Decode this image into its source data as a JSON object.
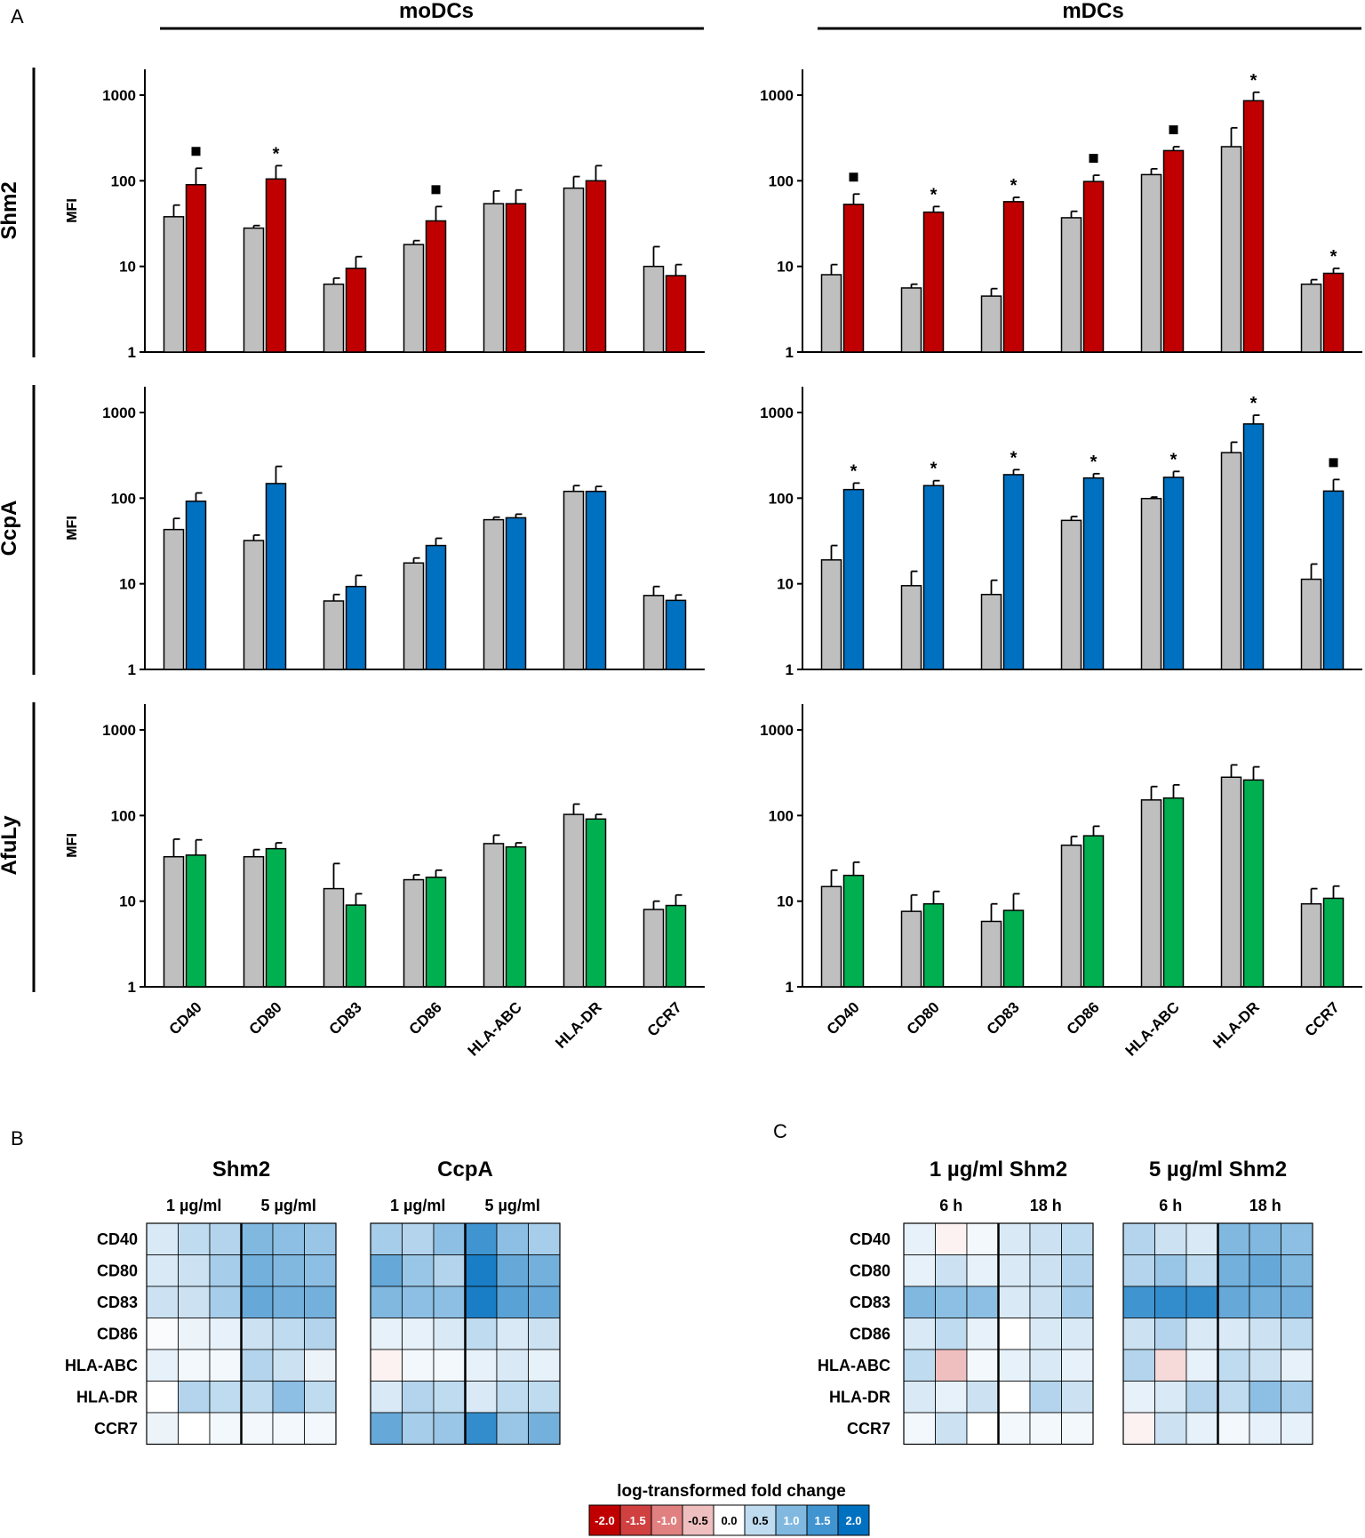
{
  "panel_letters": {
    "a": "A",
    "b": "B",
    "c": "C"
  },
  "column_titles": [
    "moDCs",
    "mDCs"
  ],
  "row_labels": [
    "Shm2",
    "CcpA",
    "AfuLy"
  ],
  "colors": {
    "control": "#bfbfbf",
    "Shm2": "#c00000",
    "CcpA": "#0070c0",
    "AfuLy": "#00b050",
    "heat_neg": "#c00000",
    "heat_pos": "#0070c0"
  },
  "chart_data": [
    {
      "type": "bar",
      "scale": "log",
      "ylabel": "MFI",
      "ylim": [
        1,
        2000
      ],
      "yticks": [
        "1",
        "10",
        "100",
        "1000"
      ],
      "categories": [
        "CD40",
        "CD80",
        "CD83",
        "CD86",
        "HLA-ABC",
        "HLA-DR",
        "CCR7"
      ],
      "panels": [
        {
          "row": "Shm2",
          "column": "moDCs",
          "series": [
            {
              "name": "control",
              "values": [
                38,
                28,
                6.2,
                18,
                54,
                82,
                10
              ],
              "err": [
                52,
                30,
                7.3,
                20,
                76,
                112,
                17
              ]
            },
            {
              "name": "Shm2",
              "values": [
                90,
                105,
                9.5,
                34,
                54,
                100,
                7.8
              ],
              "err": [
                140,
                150,
                13,
                50,
                78,
                150,
                10.5
              ]
            }
          ],
          "annotations": [
            "■",
            "*",
            "",
            "■",
            "",
            "",
            ""
          ]
        },
        {
          "row": "Shm2",
          "column": "mDCs",
          "series": [
            {
              "name": "control",
              "values": [
                8,
                5.6,
                4.5,
                37,
                118,
                250,
                6.2
              ],
              "err": [
                10.5,
                6.2,
                5.5,
                44,
                138,
                415,
                7
              ]
            },
            {
              "name": "Shm2",
              "values": [
                53,
                43,
                57,
                98,
                225,
                860,
                8.3
              ],
              "err": [
                70,
                50,
                64,
                116,
                250,
                1080,
                9.5
              ]
            }
          ],
          "annotations": [
            "■",
            "*",
            "*",
            "■",
            "■",
            "*",
            "*"
          ]
        },
        {
          "row": "CcpA",
          "column": "moDCs",
          "series": [
            {
              "name": "control",
              "values": [
                43,
                32,
                6.3,
                17.5,
                56,
                120,
                7.3
              ],
              "err": [
                58,
                37,
                7.5,
                20,
                60,
                140,
                9.3
              ]
            },
            {
              "name": "CcpA",
              "values": [
                92,
                148,
                9.3,
                28,
                59,
                120,
                6.4
              ],
              "err": [
                115,
                235,
                12.5,
                34,
                65,
                137,
                7.4
              ]
            }
          ],
          "annotations": [
            "",
            "",
            "",
            "",
            "",
            "",
            ""
          ]
        },
        {
          "row": "CcpA",
          "column": "mDCs",
          "series": [
            {
              "name": "control",
              "values": [
                19,
                9.5,
                7.5,
                55,
                99,
                340,
                11.3
              ],
              "err": [
                28,
                14,
                11,
                61,
                103,
                450,
                17
              ]
            },
            {
              "name": "CcpA",
              "values": [
                126,
                140,
                188,
                172,
                175,
                735,
                121
              ],
              "err": [
                150,
                160,
                215,
                193,
                205,
                930,
                165
              ]
            }
          ],
          "annotations": [
            "*",
            "*",
            "*",
            "*",
            "*",
            "*",
            "■"
          ]
        },
        {
          "row": "AfuLy",
          "column": "moDCs",
          "series": [
            {
              "name": "control",
              "values": [
                33,
                33,
                14,
                17.8,
                47,
                103,
                8
              ],
              "err": [
                53,
                40,
                27.5,
                20.3,
                59,
                136,
                10
              ]
            },
            {
              "name": "AfuLy",
              "values": [
                34.5,
                41,
                9,
                19,
                43,
                91,
                8.9
              ],
              "err": [
                52,
                48,
                12.2,
                23,
                48,
                103,
                11.8
              ]
            }
          ],
          "annotations": [
            "",
            "",
            "",
            "",
            "",
            "",
            ""
          ]
        },
        {
          "row": "AfuLy",
          "column": "mDCs",
          "series": [
            {
              "name": "control",
              "values": [
                14.8,
                7.6,
                5.8,
                45,
                152,
                280,
                9.3
              ],
              "err": [
                23,
                11.8,
                9.3,
                57,
                218,
                390,
                14
              ]
            },
            {
              "name": "AfuLy",
              "values": [
                20,
                9.3,
                7.8,
                58,
                160,
                260,
                10.8
              ],
              "err": [
                28.5,
                13,
                12.2,
                75,
                228,
                370,
                15
              ]
            }
          ],
          "annotations": [
            "",
            "",
            "",
            "",
            "",
            "",
            ""
          ]
        }
      ]
    },
    {
      "type": "heatmap",
      "panel": "B",
      "rows": [
        "CD40",
        "CD80",
        "CD83",
        "CD86",
        "HLA-ABC",
        "HLA-DR",
        "CCR7"
      ],
      "groups": [
        {
          "title": "Shm2",
          "subheaders": [
            "1 µg/ml",
            "5 µg/ml"
          ],
          "values": [
            [
              0.3,
              0.5,
              0.6,
              1.0,
              0.9,
              0.8
            ],
            [
              0.3,
              0.4,
              0.7,
              1.1,
              1.0,
              0.9
            ],
            [
              0.4,
              0.4,
              0.7,
              1.2,
              1.1,
              1.1
            ],
            [
              0.05,
              0.15,
              0.2,
              0.4,
              0.5,
              0.6
            ],
            [
              0.2,
              0.1,
              0.1,
              0.6,
              0.4,
              0.15
            ],
            [
              0.0,
              0.6,
              0.5,
              0.5,
              0.9,
              0.5
            ],
            [
              0.15,
              0.0,
              0.1,
              0.1,
              0.1,
              0.1
            ]
          ]
        },
        {
          "title": "CcpA",
          "subheaders": [
            "1 µg/ml",
            "5 µg/ml"
          ],
          "values": [
            [
              0.7,
              0.6,
              0.9,
              1.5,
              0.9,
              0.7
            ],
            [
              1.2,
              0.8,
              0.6,
              1.8,
              1.2,
              1.1
            ],
            [
              1.0,
              0.9,
              0.9,
              1.8,
              1.3,
              1.2
            ],
            [
              0.2,
              0.2,
              0.3,
              0.5,
              0.3,
              0.4
            ],
            [
              -0.1,
              0.1,
              0.1,
              0.2,
              0.3,
              0.2
            ],
            [
              0.3,
              0.6,
              0.5,
              0.3,
              0.5,
              0.5
            ],
            [
              1.2,
              0.7,
              0.8,
              1.6,
              0.8,
              1.1
            ]
          ]
        }
      ]
    },
    {
      "type": "heatmap",
      "panel": "C",
      "rows": [
        "CD40",
        "CD80",
        "CD83",
        "CD86",
        "HLA-ABC",
        "HLA-DR",
        "CCR7"
      ],
      "groups": [
        {
          "title": "1 µg/ml Shm2",
          "subheaders": [
            "6 h",
            "18 h"
          ],
          "values": [
            [
              0.2,
              -0.1,
              0.1,
              0.3,
              0.4,
              0.5
            ],
            [
              0.2,
              0.4,
              0.2,
              0.3,
              0.4,
              0.6
            ],
            [
              1.0,
              0.9,
              0.9,
              0.3,
              0.4,
              0.7
            ],
            [
              0.3,
              0.5,
              0.2,
              0.0,
              0.3,
              0.3
            ],
            [
              0.5,
              -0.5,
              0.1,
              0.2,
              0.3,
              0.2
            ],
            [
              0.3,
              0.2,
              0.4,
              0.0,
              0.6,
              0.4
            ],
            [
              0.1,
              0.4,
              0.0,
              0.1,
              0.1,
              0.1
            ]
          ]
        },
        {
          "title": "5 µg/ml Shm2",
          "subheaders": [
            "6 h",
            "18 h"
          ],
          "values": [
            [
              0.6,
              0.4,
              0.3,
              1.0,
              1.0,
              0.9
            ],
            [
              0.6,
              0.8,
              0.5,
              1.1,
              1.2,
              1.0
            ],
            [
              1.5,
              1.6,
              1.6,
              1.2,
              1.1,
              1.1
            ],
            [
              0.4,
              0.6,
              0.3,
              0.3,
              0.4,
              0.5
            ],
            [
              0.6,
              -0.3,
              0.2,
              0.5,
              0.4,
              0.2
            ],
            [
              0.2,
              0.3,
              0.6,
              0.5,
              0.9,
              0.7
            ],
            [
              -0.1,
              0.4,
              0.2,
              0.1,
              0.2,
              0.2
            ]
          ]
        }
      ]
    },
    {
      "type": "legend-scale",
      "title": "log-transformed fold change",
      "values": [
        -2.0,
        -1.5,
        -1.0,
        -0.5,
        0.0,
        0.5,
        1.0,
        1.5,
        2.0
      ],
      "labels": [
        "-2.0",
        "-1.5",
        "-1.0",
        "-0.5",
        "0.0",
        "0.5",
        "1.0",
        "1.5",
        "2.0"
      ]
    }
  ]
}
